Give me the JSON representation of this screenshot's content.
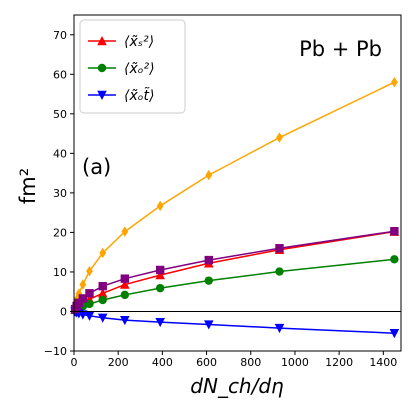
{
  "chart_data": {
    "type": "line",
    "xlabel": "dN_ch/dη",
    "ylabel": "fm²",
    "xlim": [
      0,
      1480
    ],
    "ylim": [
      -10,
      75
    ],
    "xticks": [
      0,
      200,
      400,
      600,
      800,
      1000,
      1200,
      1400
    ],
    "yticks": [
      -10,
      0,
      10,
      20,
      30,
      40,
      50,
      60,
      70
    ],
    "grid": false,
    "legend_position": "top-left",
    "annotations": [
      {
        "text": "Pb + Pb",
        "position": "top-right"
      },
      {
        "text": "(a)",
        "position": "upper-left"
      }
    ],
    "zero_line": true,
    "series": [
      {
        "name": "⟨x̃ₛ²⟩",
        "color": "#ff0000",
        "marker": "triangle-up",
        "in_legend": true,
        "x": [
          5,
          12,
          22,
          40,
          70,
          130,
          230,
          390,
          610,
          930,
          1450
        ],
        "y": [
          0.4,
          0.9,
          1.4,
          2.1,
          3.1,
          4.6,
          6.8,
          9.2,
          12.2,
          15.6,
          20.2
        ]
      },
      {
        "name": "⟨x̃ₒ²⟩",
        "color": "#008000",
        "marker": "circle",
        "in_legend": true,
        "x": [
          5,
          12,
          22,
          40,
          70,
          130,
          230,
          390,
          610,
          930,
          1450
        ],
        "y": [
          0.2,
          0.5,
          0.8,
          1.3,
          1.9,
          2.9,
          4.2,
          5.9,
          7.8,
          10.1,
          13.2
        ]
      },
      {
        "name": "⟨x̃ₒt̃⟩",
        "color": "#0000ff",
        "marker": "triangle-down",
        "in_legend": true,
        "x": [
          5,
          12,
          22,
          40,
          70,
          130,
          230,
          390,
          610,
          930,
          1450
        ],
        "y": [
          -0.1,
          -0.3,
          -0.5,
          -0.8,
          -1.1,
          -1.6,
          -2.2,
          -2.7,
          -3.3,
          -4.2,
          -5.5
        ]
      },
      {
        "name": "",
        "color": "#ffa500",
        "marker": "diamond",
        "in_legend": false,
        "x": [
          5,
          12,
          22,
          40,
          70,
          130,
          230,
          390,
          610,
          930,
          1450
        ],
        "y": [
          1.5,
          3.0,
          4.5,
          6.8,
          10.2,
          14.8,
          20.2,
          26.7,
          34.5,
          44.0,
          58.0
        ]
      },
      {
        "name": "",
        "color": "#800080",
        "marker": "square",
        "in_legend": false,
        "x": [
          5,
          12,
          22,
          40,
          70,
          130,
          230,
          390,
          610,
          930,
          1450
        ],
        "y": [
          0.6,
          1.4,
          2.2,
          3.3,
          4.6,
          6.4,
          8.3,
          10.5,
          13.0,
          16.0,
          20.3
        ]
      }
    ]
  }
}
